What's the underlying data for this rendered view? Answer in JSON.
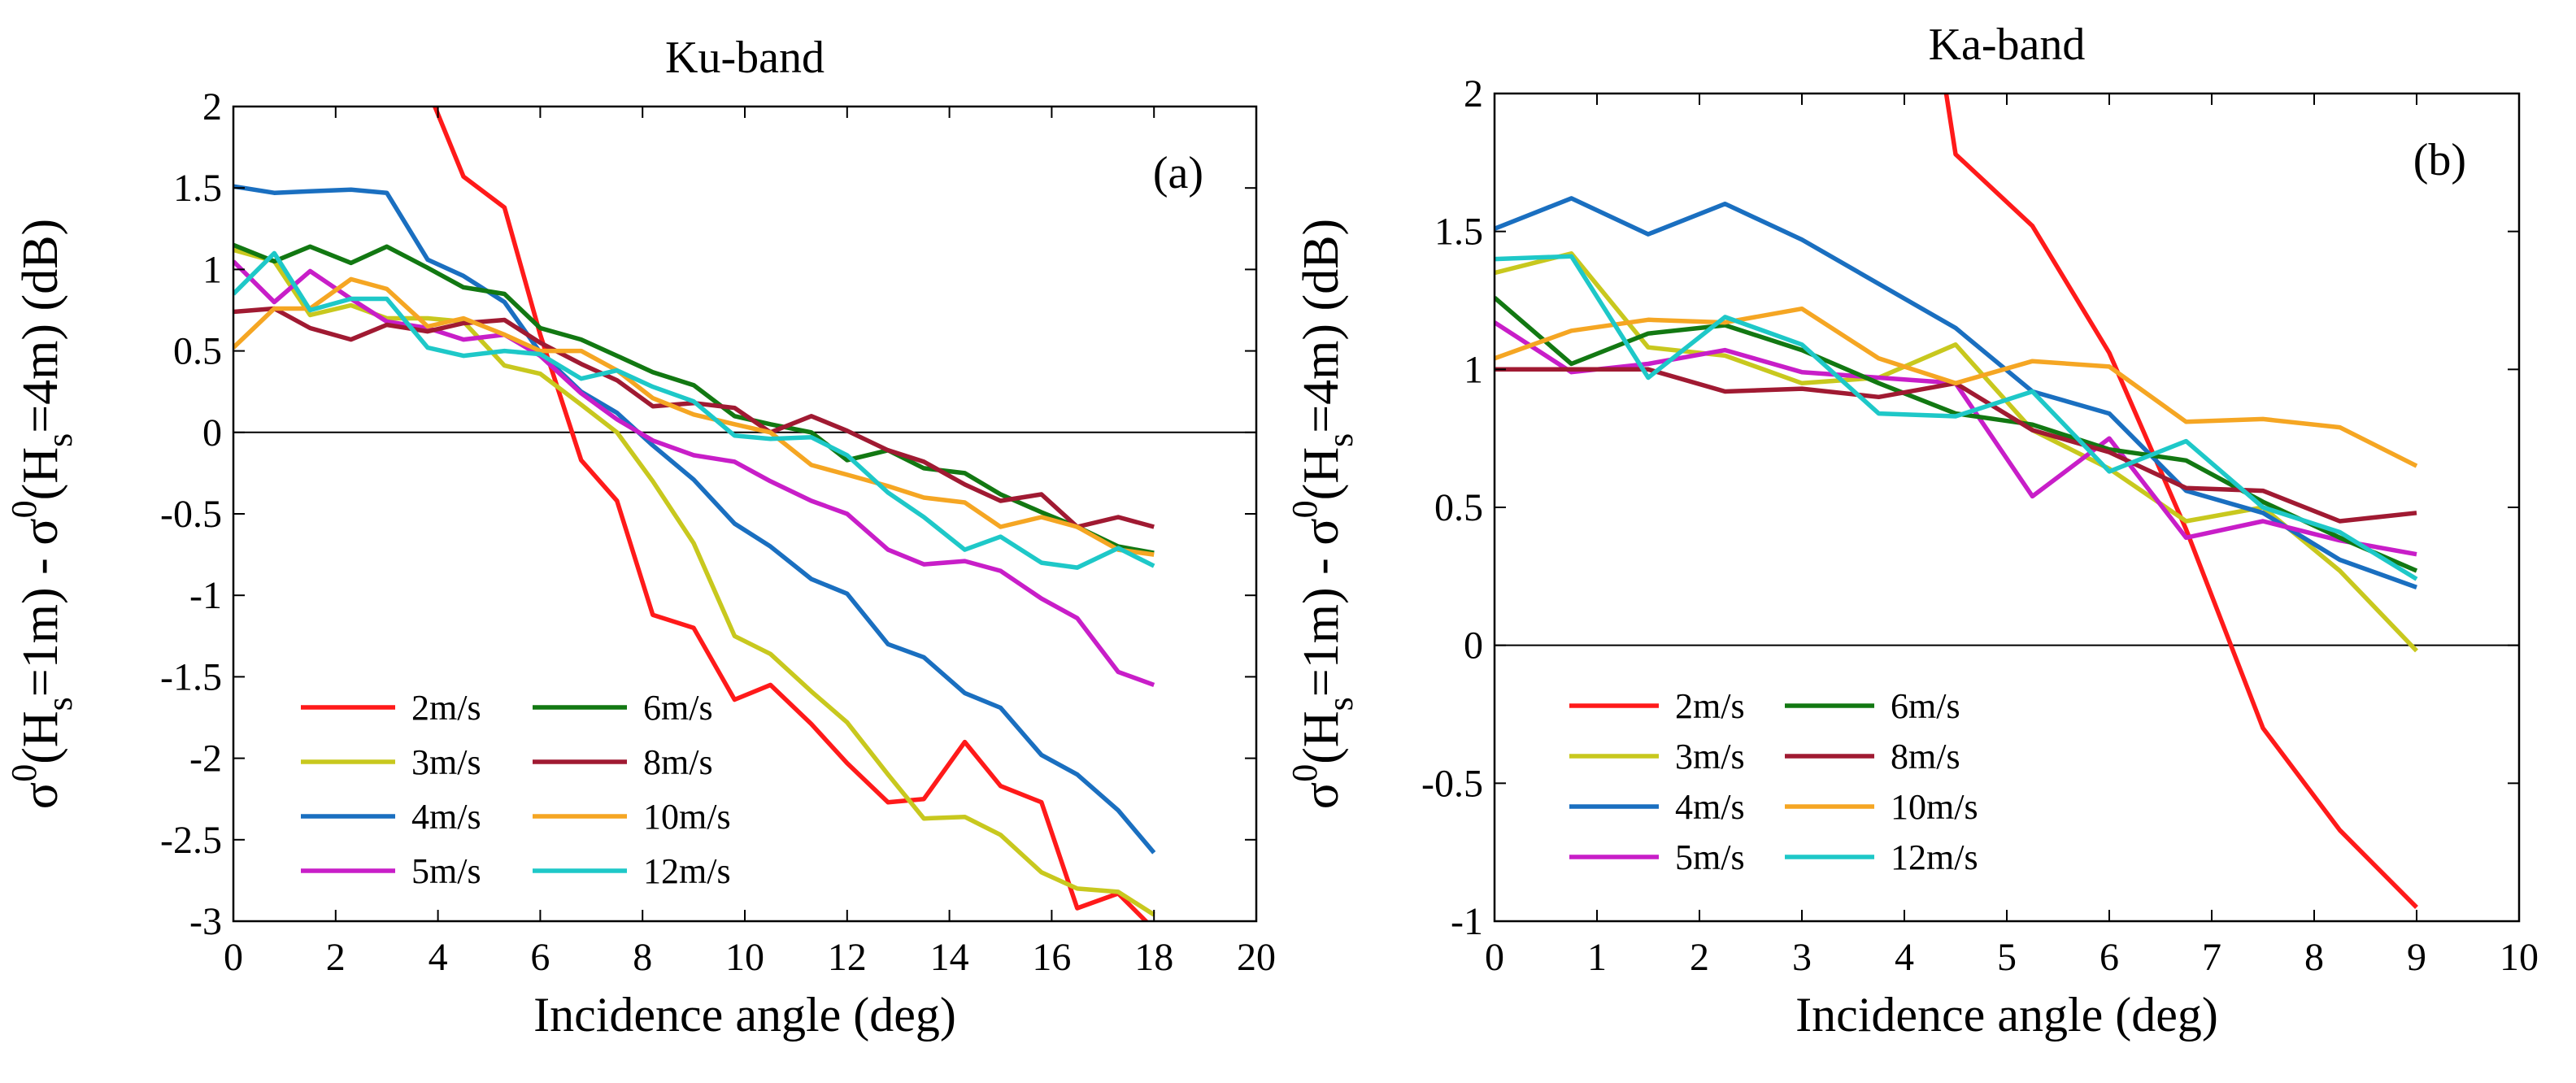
{
  "chart_data": [
    {
      "type": "line",
      "title": "Ku-band",
      "panel_label": "(a)",
      "xlabel": "Incidence angle (deg)",
      "ylabel_parts": [
        "σ",
        "0",
        "(H",
        "s",
        "=1m) - σ",
        "0",
        "(H",
        "s",
        "=4m) (dB)"
      ],
      "xlim": [
        0,
        20
      ],
      "ylim": [
        -3,
        2
      ],
      "xticks": [
        0,
        2,
        4,
        6,
        8,
        10,
        12,
        14,
        16,
        18,
        20
      ],
      "yticks": [
        -3,
        -2.5,
        -2,
        -1.5,
        -1,
        -0.5,
        0,
        0.5,
        1,
        1.5,
        2
      ],
      "xtick_labels": [
        "0",
        "2",
        "4",
        "6",
        "8",
        "10",
        "12",
        "14",
        "16",
        "18",
        "20"
      ],
      "ytick_labels": [
        "-3",
        "-2.5",
        "-2",
        "-1.5",
        "-1",
        "-0.5",
        "0",
        "0.5",
        "1",
        "1.5",
        "2"
      ],
      "zero_line": true,
      "legend_position": "bottom-left",
      "series": [
        {
          "name": "2m/s",
          "color": "#ff1a1a",
          "x": [
            3.9,
            4.5,
            5.3,
            6.0,
            6.8,
            7.5,
            8.2,
            9.0,
            9.8,
            10.5,
            11.3,
            12.0,
            12.8,
            13.5,
            14.3,
            15.0,
            15.8,
            16.5,
            17.3,
            18.0
          ],
          "y": [
            2.03,
            1.57,
            1.38,
            0.6,
            -0.17,
            -0.42,
            -1.12,
            -1.2,
            -1.64,
            -1.55,
            -1.79,
            -2.03,
            -2.27,
            -2.25,
            -1.9,
            -2.17,
            -2.27,
            -2.92,
            -2.83,
            -3.05
          ]
        },
        {
          "name": "3m/s",
          "color": "#c8c81e",
          "x": [
            0.0,
            0.8,
            1.5,
            2.3,
            3.0,
            3.8,
            4.5,
            5.3,
            6.0,
            6.8,
            7.5,
            8.2,
            9.0,
            9.8,
            10.5,
            11.3,
            12.0,
            12.8,
            13.5,
            14.3,
            15.0,
            15.8,
            16.5,
            17.3,
            18.0
          ],
          "y": [
            1.12,
            1.05,
            0.72,
            0.78,
            0.7,
            0.7,
            0.68,
            0.41,
            0.36,
            0.17,
            0.0,
            -0.3,
            -0.68,
            -1.25,
            -1.36,
            -1.59,
            -1.78,
            -2.1,
            -2.37,
            -2.36,
            -2.47,
            -2.7,
            -2.8,
            -2.82,
            -2.96
          ]
        },
        {
          "name": "4m/s",
          "color": "#1a6fc0",
          "x": [
            0.0,
            0.8,
            1.5,
            2.3,
            3.0,
            3.8,
            4.5,
            5.3,
            6.0,
            6.8,
            7.5,
            8.2,
            9.0,
            9.8,
            10.5,
            11.3,
            12.0,
            12.8,
            13.5,
            14.3,
            15.0,
            15.8,
            16.5,
            17.3,
            18.0
          ],
          "y": [
            1.51,
            1.47,
            1.48,
            1.49,
            1.47,
            1.06,
            0.96,
            0.8,
            0.49,
            0.25,
            0.12,
            -0.08,
            -0.29,
            -0.56,
            -0.7,
            -0.9,
            -0.99,
            -1.3,
            -1.38,
            -1.6,
            -1.69,
            -1.98,
            -2.1,
            -2.32,
            -2.58
          ]
        },
        {
          "name": "5m/s",
          "color": "#c81ec8",
          "x": [
            0.0,
            0.8,
            1.5,
            2.3,
            3.0,
            3.8,
            4.5,
            5.3,
            6.0,
            6.8,
            7.5,
            8.2,
            9.0,
            9.8,
            10.5,
            11.3,
            12.0,
            12.8,
            13.5,
            14.3,
            15.0,
            15.8,
            16.5,
            17.3,
            18.0
          ],
          "y": [
            1.05,
            0.8,
            0.99,
            0.82,
            0.68,
            0.64,
            0.57,
            0.6,
            0.47,
            0.24,
            0.08,
            -0.05,
            -0.14,
            -0.18,
            -0.3,
            -0.42,
            -0.5,
            -0.72,
            -0.81,
            -0.79,
            -0.85,
            -1.02,
            -1.14,
            -1.47,
            -1.55
          ]
        },
        {
          "name": "6m/s",
          "color": "#127812",
          "x": [
            0.0,
            0.8,
            1.5,
            2.3,
            3.0,
            3.8,
            4.5,
            5.3,
            6.0,
            6.8,
            7.5,
            8.2,
            9.0,
            9.8,
            10.5,
            11.3,
            12.0,
            12.8,
            13.5,
            14.3,
            15.0,
            15.8,
            16.5,
            17.3,
            18.0
          ],
          "y": [
            1.15,
            1.05,
            1.14,
            1.04,
            1.14,
            1.01,
            0.89,
            0.85,
            0.64,
            0.57,
            0.47,
            0.37,
            0.29,
            0.1,
            0.05,
            0.0,
            -0.17,
            -0.11,
            -0.22,
            -0.25,
            -0.38,
            -0.49,
            -0.58,
            -0.7,
            -0.74
          ]
        },
        {
          "name": "8m/s",
          "color": "#a01a32",
          "x": [
            0.0,
            0.8,
            1.5,
            2.3,
            3.0,
            3.8,
            4.5,
            5.3,
            6.0,
            6.8,
            7.5,
            8.2,
            9.0,
            9.8,
            10.5,
            11.3,
            12.0,
            12.8,
            13.5,
            14.3,
            15.0,
            15.8,
            16.5,
            17.3,
            18.0
          ],
          "y": [
            0.74,
            0.76,
            0.64,
            0.57,
            0.66,
            0.62,
            0.67,
            0.69,
            0.55,
            0.42,
            0.32,
            0.16,
            0.18,
            0.15,
            0.0,
            0.1,
            0.01,
            -0.11,
            -0.18,
            -0.32,
            -0.42,
            -0.38,
            -0.58,
            -0.52,
            -0.58
          ]
        },
        {
          "name": "10m/s",
          "color": "#f5a623",
          "x": [
            0.0,
            0.8,
            1.5,
            2.3,
            3.0,
            3.8,
            4.5,
            5.3,
            6.0,
            6.8,
            7.5,
            8.2,
            9.0,
            9.8,
            10.5,
            11.3,
            12.0,
            12.8,
            13.5,
            14.3,
            15.0,
            15.8,
            16.5,
            17.3,
            18.0
          ],
          "y": [
            0.52,
            0.76,
            0.76,
            0.94,
            0.88,
            0.65,
            0.7,
            0.6,
            0.5,
            0.5,
            0.38,
            0.21,
            0.11,
            0.05,
            0.0,
            -0.2,
            -0.26,
            -0.33,
            -0.4,
            -0.43,
            -0.58,
            -0.52,
            -0.58,
            -0.72,
            -0.75
          ]
        },
        {
          "name": "12m/s",
          "color": "#1ec8c8",
          "x": [
            0.0,
            0.8,
            1.5,
            2.3,
            3.0,
            3.8,
            4.5,
            5.3,
            6.0,
            6.8,
            7.5,
            8.2,
            9.0,
            9.8,
            10.5,
            11.3,
            12.0,
            12.8,
            13.5,
            14.3,
            15.0,
            15.8,
            16.5,
            17.3,
            18.0
          ],
          "y": [
            0.85,
            1.1,
            0.75,
            0.82,
            0.82,
            0.52,
            0.47,
            0.5,
            0.48,
            0.33,
            0.38,
            0.28,
            0.19,
            -0.02,
            -0.04,
            -0.03,
            -0.14,
            -0.37,
            -0.52,
            -0.72,
            -0.64,
            -0.8,
            -0.83,
            -0.71,
            -0.82
          ]
        }
      ]
    },
    {
      "type": "line",
      "title": "Ka-band",
      "panel_label": "(b)",
      "xlabel": "Incidence angle (deg)",
      "ylabel_parts": [
        "σ",
        "0",
        "(H",
        "s",
        "=1m) - σ",
        "0",
        "(H",
        "s",
        "=4m) (dB)"
      ],
      "xlim": [
        0,
        10
      ],
      "ylim": [
        -1,
        2
      ],
      "xticks": [
        0,
        1,
        2,
        3,
        4,
        5,
        6,
        7,
        8,
        9,
        10
      ],
      "yticks": [
        -1,
        -0.5,
        0,
        0.5,
        1,
        1.5,
        2
      ],
      "xtick_labels": [
        "0",
        "1",
        "2",
        "3",
        "4",
        "5",
        "6",
        "7",
        "8",
        "9",
        "10"
      ],
      "ytick_labels": [
        "-1",
        "-0.5",
        "0",
        "0.5",
        "1",
        "1.5",
        "2"
      ],
      "zero_line": true,
      "legend_position": "bottom-left",
      "series": [
        {
          "name": "2m/s",
          "color": "#ff1a1a",
          "x": [
            4.4,
            4.5,
            5.25,
            6.0,
            6.75,
            7.5,
            8.25,
            9.0
          ],
          "y": [
            2.02,
            1.78,
            1.52,
            1.06,
            0.42,
            -0.3,
            -0.67,
            -0.95
          ]
        },
        {
          "name": "3m/s",
          "color": "#c8c81e",
          "x": [
            0.0,
            0.75,
            1.5,
            2.25,
            3.0,
            3.75,
            4.5,
            5.25,
            6.0,
            6.75,
            7.5,
            8.25,
            9.0
          ],
          "y": [
            1.35,
            1.42,
            1.08,
            1.05,
            0.95,
            0.97,
            1.09,
            0.78,
            0.64,
            0.45,
            0.5,
            0.27,
            -0.02
          ]
        },
        {
          "name": "4m/s",
          "color": "#1a6fc0",
          "x": [
            0.0,
            0.75,
            1.5,
            2.25,
            3.0,
            3.75,
            4.5,
            5.25,
            6.0,
            6.75,
            7.5,
            8.25,
            9.0
          ],
          "y": [
            1.51,
            1.62,
            1.49,
            1.6,
            1.47,
            1.31,
            1.15,
            0.92,
            0.84,
            0.56,
            0.48,
            0.31,
            0.21
          ]
        },
        {
          "name": "5m/s",
          "color": "#c81ec8",
          "x": [
            0.0,
            0.75,
            1.5,
            2.25,
            3.0,
            3.75,
            4.5,
            5.25,
            6.0,
            6.75,
            7.5,
            8.25,
            9.0
          ],
          "y": [
            1.17,
            0.99,
            1.02,
            1.07,
            0.99,
            0.97,
            0.95,
            0.54,
            0.75,
            0.39,
            0.45,
            0.38,
            0.33
          ]
        },
        {
          "name": "6m/s",
          "color": "#127812",
          "x": [
            0.0,
            0.75,
            1.5,
            2.25,
            3.0,
            3.75,
            4.5,
            5.25,
            6.0,
            6.75,
            7.5,
            8.25,
            9.0
          ],
          "y": [
            1.26,
            1.02,
            1.13,
            1.16,
            1.07,
            0.95,
            0.84,
            0.8,
            0.71,
            0.67,
            0.52,
            0.39,
            0.27
          ]
        },
        {
          "name": "8m/s",
          "color": "#a01a32",
          "x": [
            0.0,
            0.75,
            1.5,
            2.25,
            3.0,
            3.75,
            4.5,
            5.25,
            6.0,
            6.75,
            7.5,
            8.25,
            9.0
          ],
          "y": [
            1.0,
            1.0,
            1.0,
            0.92,
            0.93,
            0.9,
            0.95,
            0.78,
            0.7,
            0.57,
            0.56,
            0.45,
            0.48
          ]
        },
        {
          "name": "10m/s",
          "color": "#f5a623",
          "x": [
            0.0,
            0.75,
            1.5,
            2.25,
            3.0,
            3.75,
            4.5,
            5.25,
            6.0,
            6.75,
            7.5,
            8.25,
            9.0
          ],
          "y": [
            1.04,
            1.14,
            1.18,
            1.17,
            1.22,
            1.04,
            0.95,
            1.03,
            1.01,
            0.81,
            0.82,
            0.79,
            0.65
          ]
        },
        {
          "name": "12m/s",
          "color": "#1ec8c8",
          "x": [
            0.0,
            0.75,
            1.5,
            2.25,
            3.0,
            3.75,
            4.5,
            5.25,
            6.0,
            6.75,
            7.5,
            8.25,
            9.0
          ],
          "y": [
            1.4,
            1.41,
            0.97,
            1.19,
            1.09,
            0.84,
            0.83,
            0.92,
            0.63,
            0.74,
            0.5,
            0.41,
            0.24
          ]
        }
      ]
    }
  ]
}
